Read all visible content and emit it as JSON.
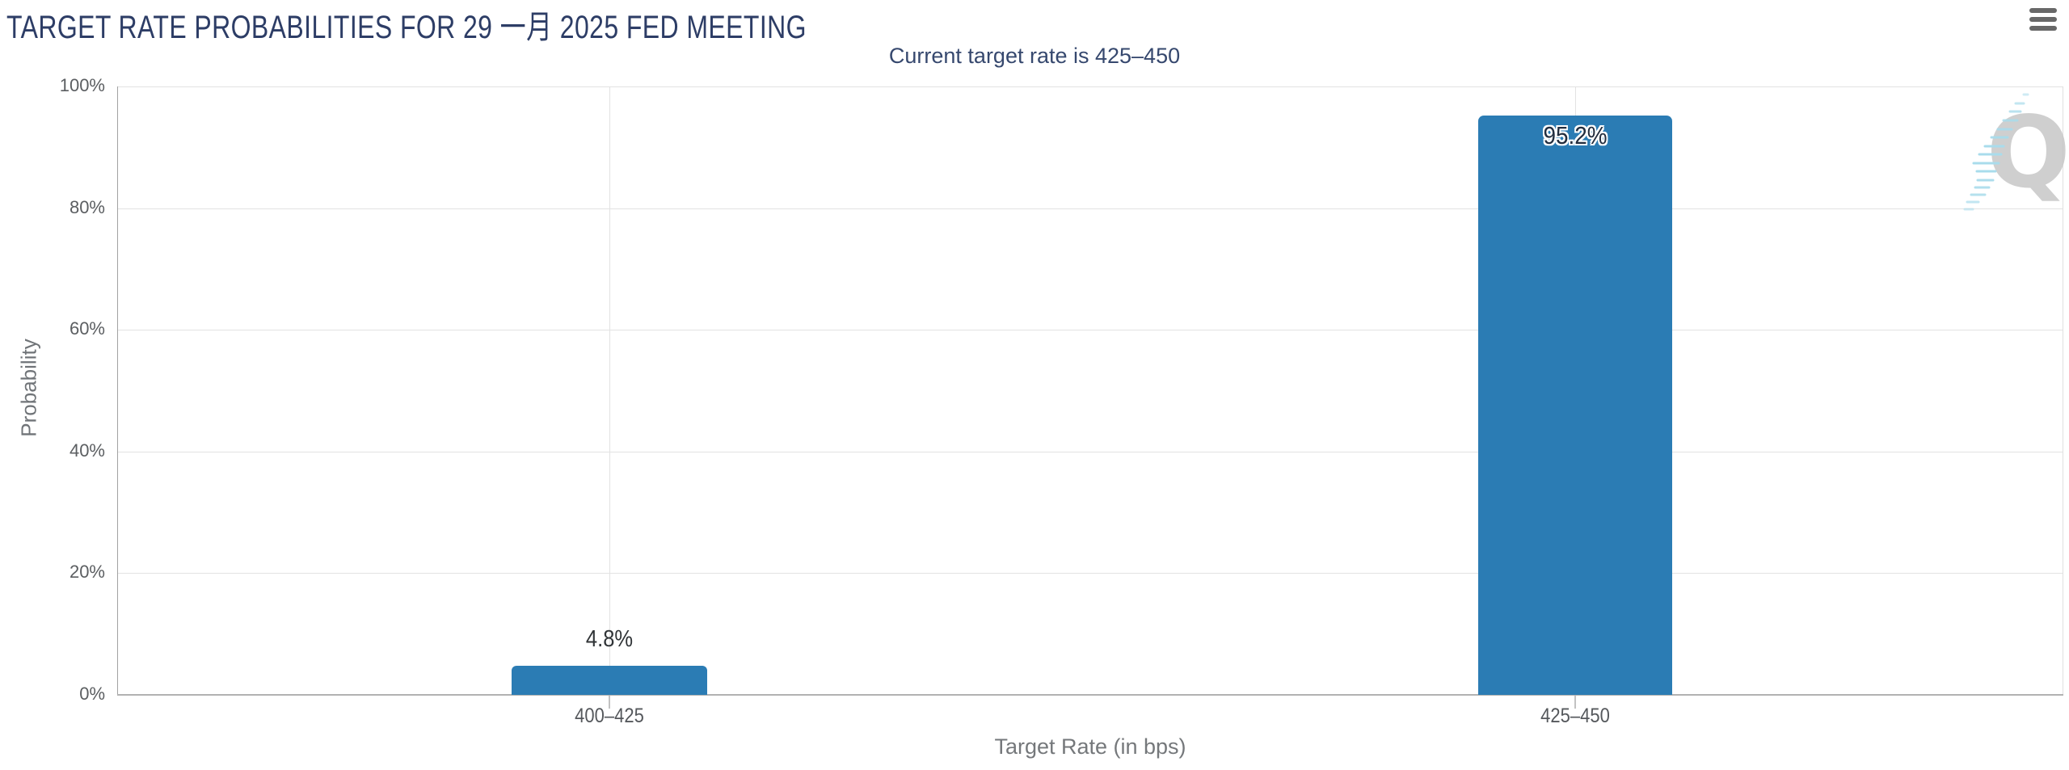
{
  "header": {
    "title": "TARGET RATE PROBABILITIES FOR 29 一月 2025 FED MEETING"
  },
  "toolbar": {
    "menu_icon": "hamburger-menu-icon"
  },
  "chart": {
    "subtitle": "Current target rate is 425–450",
    "watermark_letter": "Q",
    "accent_color": "#2b7cb4",
    "title_color": "#2d3d66",
    "grid_color": "#e2e2e2"
  },
  "chart_data": {
    "type": "bar",
    "title": "TARGET RATE PROBABILITIES FOR 29 一月 2025 FED MEETING",
    "subtitle": "Current target rate is 425–450",
    "categories": [
      "400–425",
      "425–450"
    ],
    "values": [
      4.8,
      95.2
    ],
    "value_labels": [
      "4.8%",
      "95.2%"
    ],
    "xlabel": "Target Rate (in bps)",
    "ylabel": "Probability",
    "ylim": [
      0,
      100
    ],
    "ytick_labels": [
      "100%",
      "80%",
      "60%",
      "40%",
      "20%",
      "0%"
    ],
    "bar_color": "#2b7cb4",
    "grid": true,
    "legend_position": "none"
  }
}
